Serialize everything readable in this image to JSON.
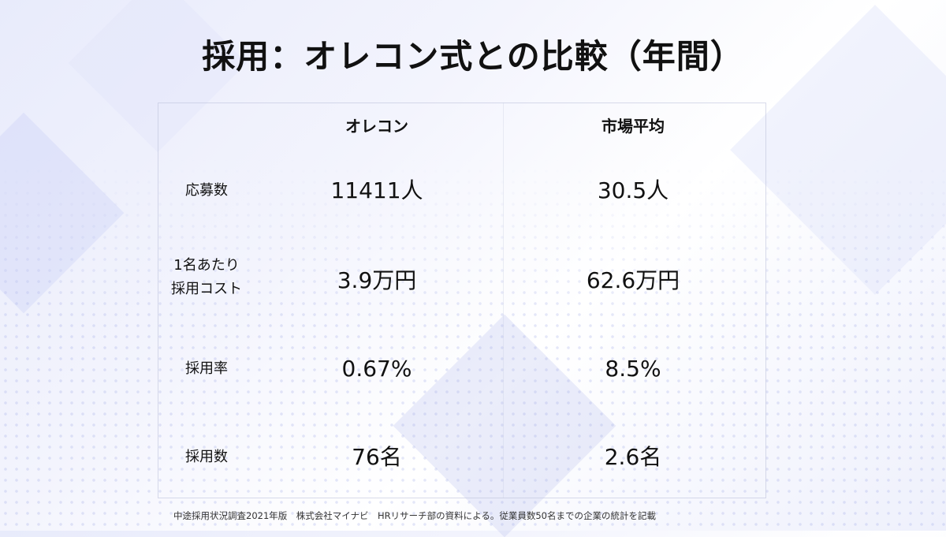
{
  "title": "採用：オレコン式との比較（年間）",
  "table": {
    "headers": [
      "オレコン",
      "市場平均"
    ],
    "rows": [
      {
        "label": "応募数",
        "values": [
          "11411人",
          "30.5人"
        ]
      },
      {
        "label_lines": [
          "1名あたり",
          "採用コスト"
        ],
        "values": [
          "3.9万円",
          "62.6万円"
        ]
      },
      {
        "label": "採用率",
        "values": [
          "0.67%",
          "8.5%"
        ]
      },
      {
        "label": "採用数",
        "values": [
          "76名",
          "2.6名"
        ]
      }
    ]
  },
  "footnote": "中途採用状況調査2021年版　株式会社マイナビ　HRリサーチ部の資料による。従業員数50名までの企業の統計を記載"
}
